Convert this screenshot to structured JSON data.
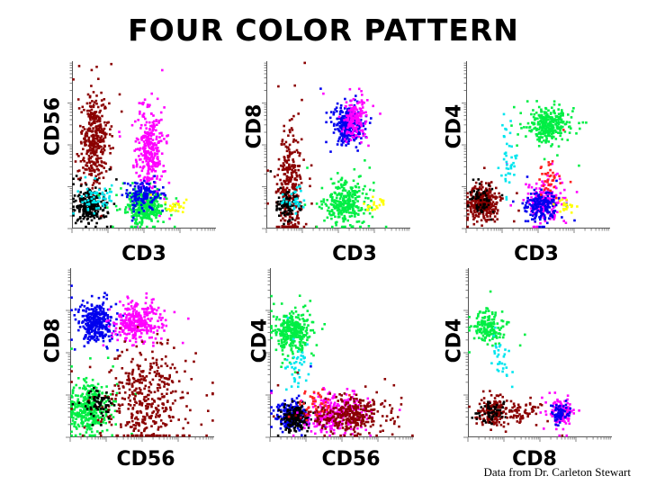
{
  "title": "FOUR COLOR PATTERN",
  "credit": "Data from Dr. Carleton Stewart",
  "colors": {
    "darkred": "#8b0000",
    "magenta": "#ff00ff",
    "blue": "#0000ee",
    "green": "#00ee44",
    "black": "#000000",
    "cyan": "#00e5ee",
    "yellow": "#ffff00",
    "red": "#ff2020"
  },
  "chart_data": [
    {
      "type": "scatter",
      "xlabel": "CD3",
      "ylabel": "CD56",
      "xlim": [
        0,
        1
      ],
      "ylim": [
        0,
        1
      ],
      "series": [
        {
          "color": "darkred",
          "n": 380,
          "cx": 0.16,
          "cy": 0.52,
          "sx": 0.045,
          "sy": 0.14
        },
        {
          "color": "magenta",
          "n": 320,
          "cx": 0.54,
          "cy": 0.46,
          "sx": 0.05,
          "sy": 0.13
        },
        {
          "color": "black",
          "n": 260,
          "cx": 0.12,
          "cy": 0.14,
          "sx": 0.05,
          "sy": 0.045
        },
        {
          "color": "cyan",
          "n": 60,
          "cx": 0.18,
          "cy": 0.18,
          "sx": 0.05,
          "sy": 0.04
        },
        {
          "color": "green",
          "n": 330,
          "cx": 0.5,
          "cy": 0.13,
          "sx": 0.07,
          "sy": 0.05
        },
        {
          "color": "blue",
          "n": 130,
          "cx": 0.49,
          "cy": 0.2,
          "sx": 0.06,
          "sy": 0.045
        },
        {
          "color": "yellow",
          "n": 25,
          "cx": 0.72,
          "cy": 0.13,
          "sx": 0.04,
          "sy": 0.02
        }
      ]
    },
    {
      "type": "scatter",
      "xlabel": "CD3",
      "ylabel": "CD8",
      "xlim": [
        0,
        1
      ],
      "ylim": [
        0,
        1
      ],
      "series": [
        {
          "color": "darkred",
          "n": 300,
          "cx": 0.16,
          "cy": 0.24,
          "sx": 0.04,
          "sy": 0.17
        },
        {
          "color": "blue",
          "n": 260,
          "cx": 0.57,
          "cy": 0.62,
          "sx": 0.05,
          "sy": 0.06
        },
        {
          "color": "magenta",
          "n": 160,
          "cx": 0.61,
          "cy": 0.66,
          "sx": 0.04,
          "sy": 0.06
        },
        {
          "color": "green",
          "n": 300,
          "cx": 0.55,
          "cy": 0.15,
          "sx": 0.07,
          "sy": 0.06
        },
        {
          "color": "black",
          "n": 90,
          "cx": 0.14,
          "cy": 0.14,
          "sx": 0.04,
          "sy": 0.04
        },
        {
          "color": "cyan",
          "n": 30,
          "cx": 0.2,
          "cy": 0.18,
          "sx": 0.05,
          "sy": 0.04
        },
        {
          "color": "yellow",
          "n": 20,
          "cx": 0.76,
          "cy": 0.14,
          "sx": 0.04,
          "sy": 0.02
        }
      ]
    },
    {
      "type": "scatter",
      "xlabel": "CD3",
      "ylabel": "CD4",
      "xlim": [
        0,
        1
      ],
      "ylim": [
        0,
        1
      ],
      "series": [
        {
          "color": "darkred",
          "n": 320,
          "cx": 0.12,
          "cy": 0.15,
          "sx": 0.05,
          "sy": 0.05
        },
        {
          "color": "black",
          "n": 60,
          "cx": 0.1,
          "cy": 0.17,
          "sx": 0.04,
          "sy": 0.04
        },
        {
          "color": "green",
          "n": 300,
          "cx": 0.57,
          "cy": 0.62,
          "sx": 0.07,
          "sy": 0.05
        },
        {
          "color": "magenta",
          "n": 180,
          "cx": 0.54,
          "cy": 0.17,
          "sx": 0.06,
          "sy": 0.06
        },
        {
          "color": "blue",
          "n": 180,
          "cx": 0.52,
          "cy": 0.13,
          "sx": 0.05,
          "sy": 0.05
        },
        {
          "color": "red",
          "n": 40,
          "cx": 0.57,
          "cy": 0.3,
          "sx": 0.04,
          "sy": 0.04
        },
        {
          "color": "cyan",
          "n": 40,
          "cx": 0.29,
          "cy": 0.42,
          "sx": 0.03,
          "sy": 0.12
        },
        {
          "color": "yellow",
          "n": 20,
          "cx": 0.7,
          "cy": 0.14,
          "sx": 0.03,
          "sy": 0.02
        }
      ]
    },
    {
      "type": "scatter",
      "xlabel": "CD56",
      "ylabel": "CD8",
      "xlim": [
        0,
        1
      ],
      "ylim": [
        0,
        1
      ],
      "series": [
        {
          "color": "blue",
          "n": 300,
          "cx": 0.18,
          "cy": 0.68,
          "sx": 0.06,
          "sy": 0.06
        },
        {
          "color": "magenta",
          "n": 300,
          "cx": 0.46,
          "cy": 0.68,
          "sx": 0.08,
          "sy": 0.05
        },
        {
          "color": "green",
          "n": 380,
          "cx": 0.13,
          "cy": 0.17,
          "sx": 0.07,
          "sy": 0.07
        },
        {
          "color": "darkred",
          "n": 420,
          "cx": 0.52,
          "cy": 0.22,
          "sx": 0.14,
          "sy": 0.14
        },
        {
          "color": "black",
          "n": 60,
          "cx": 0.2,
          "cy": 0.2,
          "sx": 0.05,
          "sy": 0.05
        }
      ]
    },
    {
      "type": "scatter",
      "xlabel": "CD56",
      "ylabel": "CD4",
      "xlim": [
        0,
        1
      ],
      "ylim": [
        0,
        1
      ],
      "series": [
        {
          "color": "green",
          "n": 320,
          "cx": 0.15,
          "cy": 0.62,
          "sx": 0.06,
          "sy": 0.06
        },
        {
          "color": "cyan",
          "n": 40,
          "cx": 0.2,
          "cy": 0.42,
          "sx": 0.04,
          "sy": 0.08
        },
        {
          "color": "blue",
          "n": 220,
          "cx": 0.15,
          "cy": 0.13,
          "sx": 0.05,
          "sy": 0.04
        },
        {
          "color": "black",
          "n": 160,
          "cx": 0.18,
          "cy": 0.11,
          "sx": 0.05,
          "sy": 0.04
        },
        {
          "color": "magenta",
          "n": 300,
          "cx": 0.45,
          "cy": 0.14,
          "sx": 0.1,
          "sy": 0.05
        },
        {
          "color": "darkred",
          "n": 320,
          "cx": 0.55,
          "cy": 0.13,
          "sx": 0.13,
          "sy": 0.05
        },
        {
          "color": "red",
          "n": 40,
          "cx": 0.32,
          "cy": 0.2,
          "sx": 0.05,
          "sy": 0.04
        }
      ]
    },
    {
      "type": "scatter",
      "xlabel": "CD8",
      "ylabel": "CD4",
      "xlim": [
        0,
        1
      ],
      "ylim": [
        0,
        1
      ],
      "series": [
        {
          "color": "green",
          "n": 160,
          "cx": 0.15,
          "cy": 0.65,
          "sx": 0.05,
          "sy": 0.05
        },
        {
          "color": "cyan",
          "n": 30,
          "cx": 0.23,
          "cy": 0.45,
          "sx": 0.04,
          "sy": 0.08
        },
        {
          "color": "darkred",
          "n": 160,
          "cx": 0.17,
          "cy": 0.15,
          "sx": 0.05,
          "sy": 0.04
        },
        {
          "color": "black",
          "n": 60,
          "cx": 0.15,
          "cy": 0.15,
          "sx": 0.04,
          "sy": 0.03
        },
        {
          "color": "darkred",
          "n": 70,
          "cx": 0.38,
          "cy": 0.15,
          "sx": 0.09,
          "sy": 0.03
        },
        {
          "color": "magenta",
          "n": 130,
          "cx": 0.65,
          "cy": 0.15,
          "sx": 0.04,
          "sy": 0.04
        },
        {
          "color": "blue",
          "n": 60,
          "cx": 0.64,
          "cy": 0.14,
          "sx": 0.03,
          "sy": 0.03
        }
      ]
    }
  ]
}
